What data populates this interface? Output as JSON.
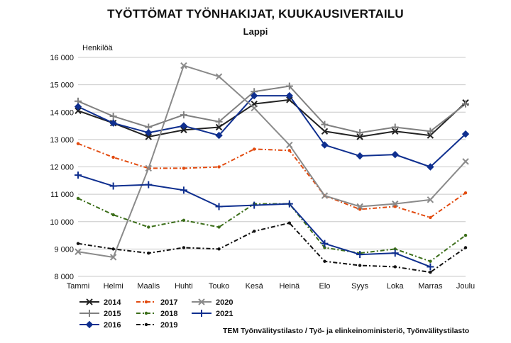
{
  "chart_data": {
    "type": "line",
    "title": "TYÖTTÖMAT TYÖNHAKIJAT, KUUKAUSIVERTAILU",
    "subtitle": "Lappi",
    "ylabel": "Henkilöä",
    "source": "TEM Työnvälitystilasto / Työ- ja elinkeinoministeriö, Työnvälitystilasto",
    "categories": [
      "Tammi",
      "Helmi",
      "Maalis",
      "Huhti",
      "Touko",
      "Kesä",
      "Heinä",
      "Elo",
      "Syys",
      "Loka",
      "Marras",
      "Joulu"
    ],
    "ylim": [
      8000,
      16000
    ],
    "yticks": [
      8000,
      9000,
      10000,
      11000,
      12000,
      13000,
      14000,
      15000,
      16000
    ],
    "ytick_labels": [
      "8 000",
      "9 000",
      "10 000",
      "11 000",
      "12 000",
      "13 000",
      "14 000",
      "15 000",
      "16 000"
    ],
    "grid": true,
    "legend_position": "bottom-left",
    "series": [
      {
        "name": "2014",
        "color": "#222222",
        "marker": "x",
        "dash": "",
        "width": 2,
        "values": [
          14050,
          13600,
          13100,
          13350,
          13450,
          14300,
          14450,
          13300,
          13100,
          13300,
          13150,
          14350
        ]
      },
      {
        "name": "2015",
        "color": "#808080",
        "marker": "plus",
        "dash": "",
        "width": 2,
        "values": [
          14400,
          13850,
          13450,
          13900,
          13650,
          14750,
          14950,
          13550,
          13250,
          13450,
          13300,
          14300
        ]
      },
      {
        "name": "2016",
        "color": "#0f2f8f",
        "marker": "diamond",
        "dash": "",
        "width": 2,
        "values": [
          14200,
          13600,
          13250,
          13500,
          13150,
          14600,
          14600,
          12800,
          12400,
          12450,
          12000,
          13200
        ]
      },
      {
        "name": "2017",
        "color": "#e24a0e",
        "marker": "dot",
        "dash": "6,3,2,3",
        "width": 2,
        "values": [
          12850,
          12350,
          11950,
          11950,
          12000,
          12650,
          12600,
          10950,
          10450,
          10550,
          10150,
          11050
        ]
      },
      {
        "name": "2018",
        "color": "#3c6e1a",
        "marker": "dot",
        "dash": "6,3,2,3",
        "width": 2,
        "values": [
          10850,
          10250,
          9800,
          10050,
          9800,
          10650,
          10650,
          9050,
          8850,
          9000,
          8550,
          9500
        ]
      },
      {
        "name": "2019",
        "color": "#111111",
        "marker": "dot",
        "dash": "6,3,2,3",
        "width": 2,
        "values": [
          9200,
          9000,
          8850,
          9050,
          9000,
          9650,
          9950,
          8550,
          8400,
          8350,
          8150,
          9050
        ]
      },
      {
        "name": "2020",
        "color": "#8a8a8a",
        "marker": "x",
        "dash": "",
        "width": 2,
        "values": [
          8900,
          8700,
          11950,
          15700,
          15300,
          14150,
          12800,
          10950,
          10550,
          10650,
          10800,
          12200
        ]
      },
      {
        "name": "2021",
        "color": "#0f2f8f",
        "marker": "plus",
        "dash": "",
        "width": 2,
        "values": [
          11700,
          11300,
          11350,
          11150,
          10550,
          10600,
          10650,
          9200,
          8800,
          8850,
          8350,
          null
        ]
      }
    ]
  }
}
